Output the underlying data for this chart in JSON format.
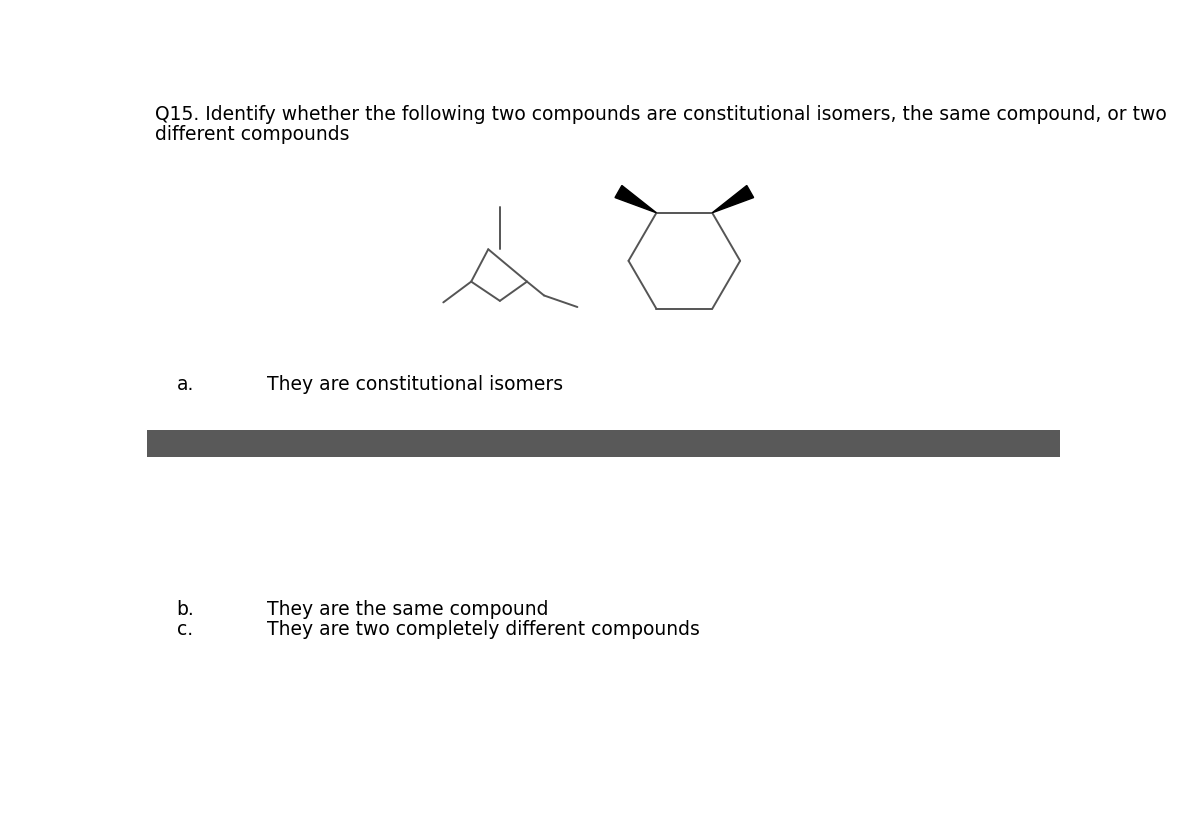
{
  "title_line1": "Q15. Identify whether the following two compounds are constitutional isomers, the same compound, or two",
  "title_line2": "different compounds",
  "title_fontsize": 13.5,
  "answer_a_label": "a.",
  "answer_a_text": "They are constitutional isomers",
  "answer_b_label": "b.",
  "answer_b_text": "They are the same compound",
  "answer_c_label": "c.",
  "answer_c_text": "They are two completely different compounds",
  "answer_fontsize": 13.5,
  "background_color": "#ffffff",
  "divider_color": "#595959",
  "line_color": "#555555",
  "bold_color": "#000000",
  "chair_lw": 1.4,
  "hex_lw": 1.4
}
